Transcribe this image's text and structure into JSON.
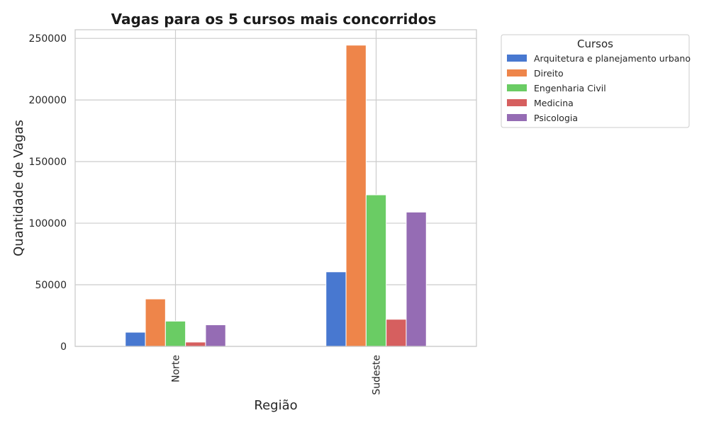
{
  "chart_data": {
    "type": "bar",
    "title": "Vagas para os 5 cursos mais concorridos",
    "xlabel": "Região",
    "ylabel": "Quantidade de Vagas",
    "categories": [
      "Norte",
      "Sudeste"
    ],
    "series": [
      {
        "name": "Arquitetura e planejamento urbano",
        "values": [
          11500,
          60500
        ],
        "color": "#4878d0"
      },
      {
        "name": "Direito",
        "values": [
          38500,
          244500
        ],
        "color": "#ee854a"
      },
      {
        "name": "Engenharia Civil",
        "values": [
          20500,
          123000
        ],
        "color": "#6acc64"
      },
      {
        "name": "Medicina",
        "values": [
          3500,
          22000
        ],
        "color": "#d65f5f"
      },
      {
        "name": "Psicologia",
        "values": [
          17500,
          109000
        ],
        "color": "#956cb4"
      }
    ],
    "ylim": [
      0,
      257000
    ],
    "yticks": [
      0,
      50000,
      100000,
      150000,
      200000,
      250000
    ],
    "ytick_labels": [
      "0",
      "50000",
      "100000",
      "150000",
      "200000",
      "250000"
    ],
    "grid": true,
    "legend": {
      "title": "Cursos",
      "position": "outside-top-right"
    }
  }
}
